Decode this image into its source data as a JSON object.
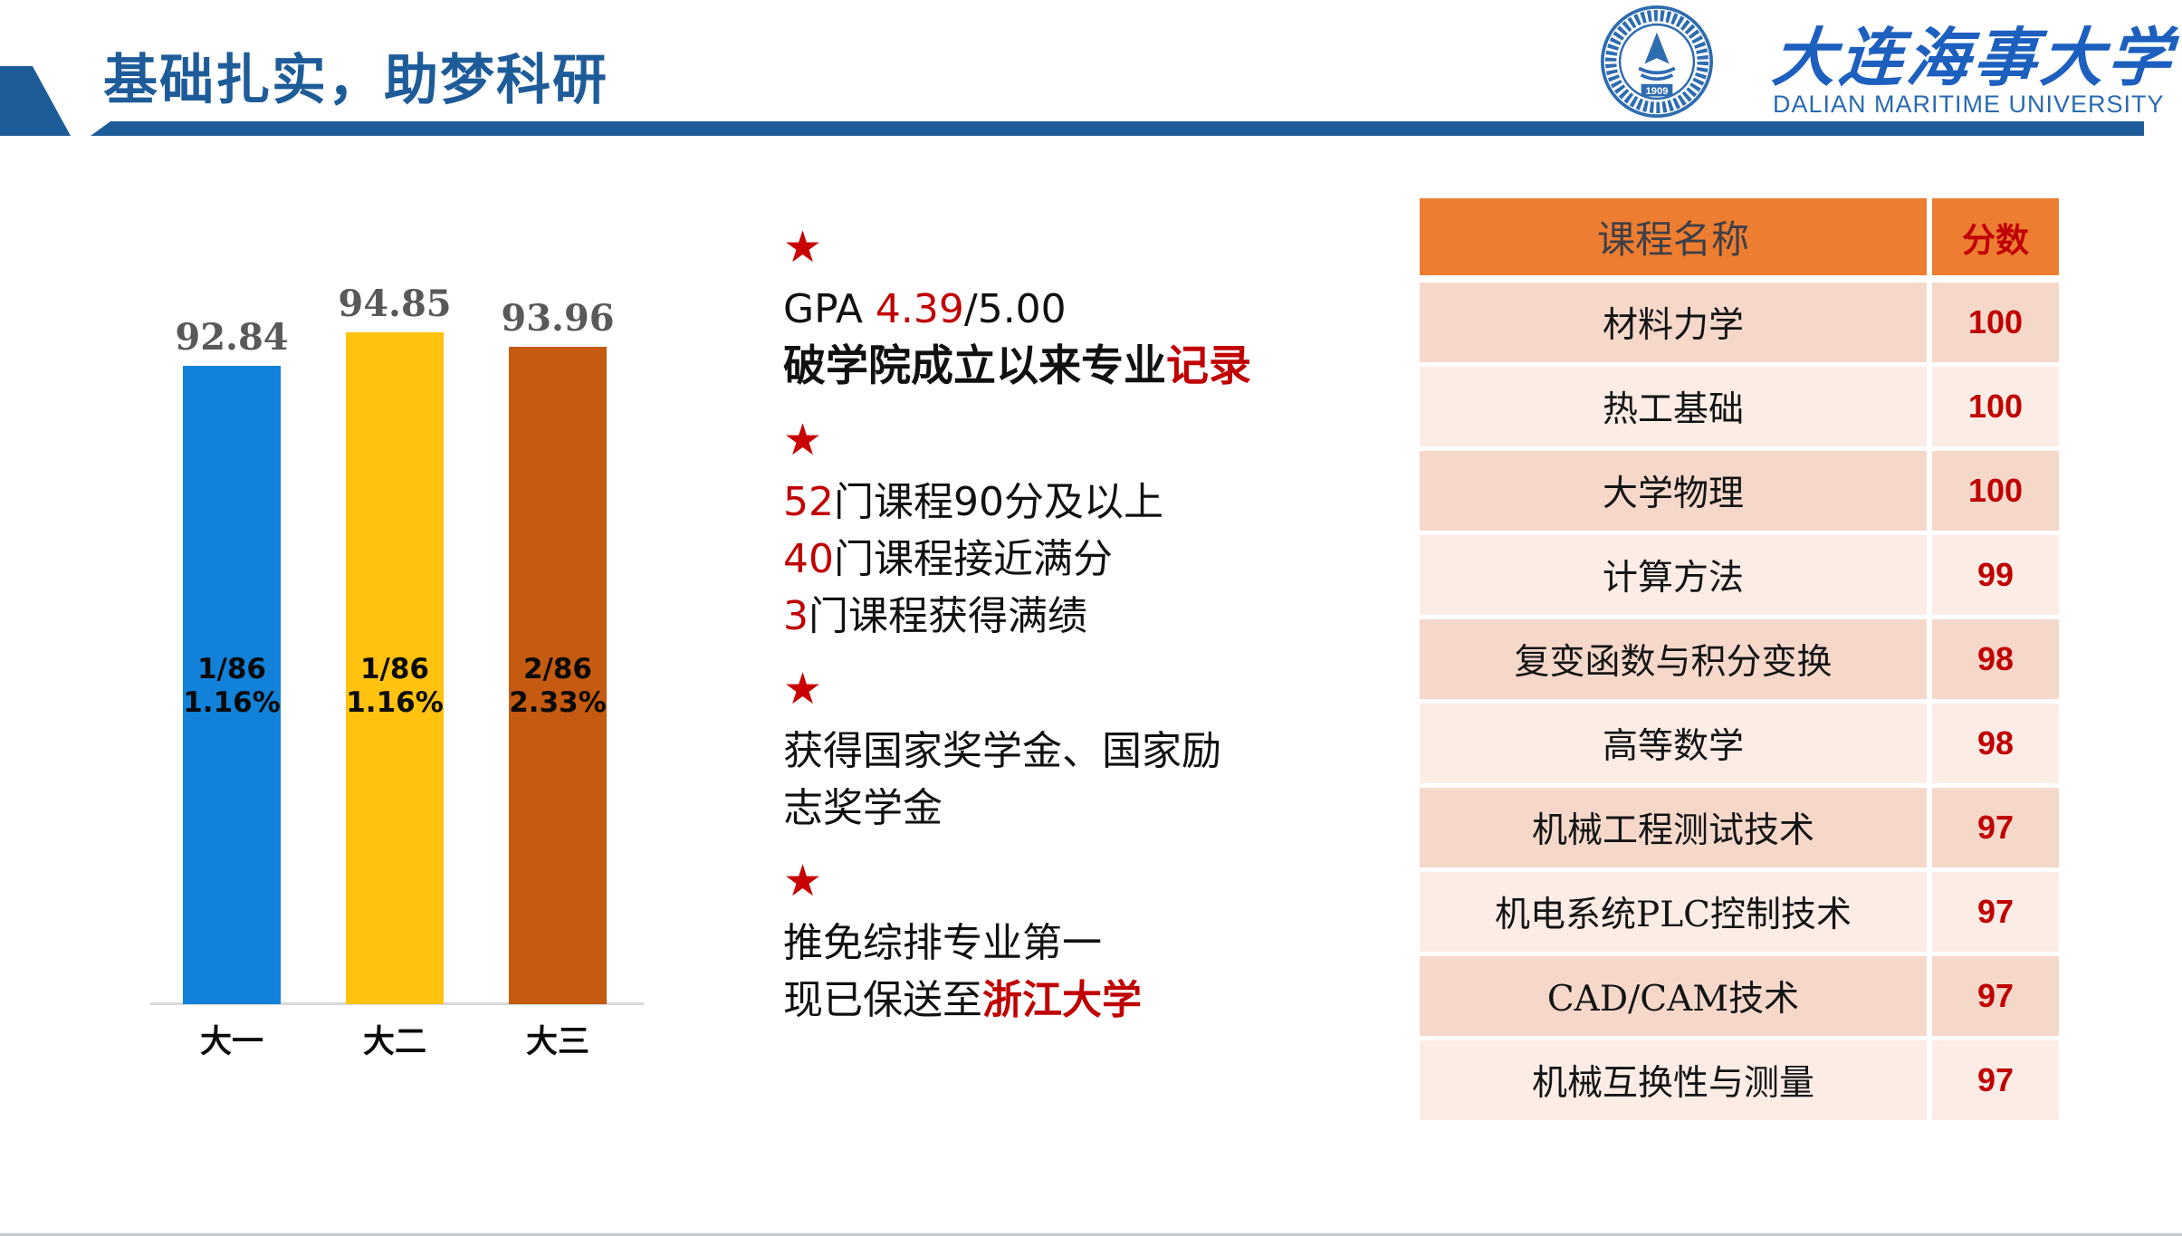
{
  "header": {
    "title": "基础扎实，助梦科研",
    "logo": {
      "cn": "大连海事大学",
      "en": "DALIAN  MARITIME UNIVERSITY",
      "seal_year": "1909"
    }
  },
  "star_glyph": "★",
  "bullets": [
    {
      "lines": [
        {
          "segments": [
            {
              "t": "GPA "
            },
            {
              "t": "4.39",
              "red": true
            },
            {
              "t": "/5.00"
            }
          ]
        },
        {
          "em": true,
          "segments": [
            {
              "t": "破学院成立以来专业",
              "bold": true
            },
            {
              "t": "记录",
              "red": true,
              "bold": true
            }
          ]
        }
      ]
    },
    {
      "lines": [
        {
          "segments": [
            {
              "t": "52",
              "red": true
            },
            {
              "t": "门课程90分及以上"
            }
          ]
        },
        {
          "segments": [
            {
              "t": "40",
              "red": true
            },
            {
              "t": "门课程接近满分"
            }
          ]
        },
        {
          "segments": [
            {
              "t": "3",
              "red": true
            },
            {
              "t": "门课程获得满绩"
            }
          ]
        }
      ]
    },
    {
      "lines": [
        {
          "segments": [
            {
              "t": "获得国家奖学金、国家励"
            }
          ]
        },
        {
          "segments": [
            {
              "t": "志奖学金"
            }
          ]
        }
      ]
    },
    {
      "lines": [
        {
          "segments": [
            {
              "t": "推免综排专业第一"
            }
          ]
        },
        {
          "segments": [
            {
              "t": "现已保送至"
            },
            {
              "t": "浙江大学",
              "red": true,
              "bold": true
            }
          ]
        }
      ]
    }
  ],
  "chart_data": {
    "type": "bar",
    "title": "",
    "categories": [
      "大一",
      "大二",
      "大三"
    ],
    "values": [
      92.84,
      94.85,
      93.96
    ],
    "value_labels": [
      "92.84",
      "94.85",
      "93.96"
    ],
    "bar_annotations": [
      [
        "1/86",
        "1.16%"
      ],
      [
        "1/86",
        "1.16%"
      ],
      [
        "2/86",
        "2.33%"
      ]
    ],
    "bar_colors": [
      "#1181D9",
      "#FFC20E",
      "#C55A11"
    ],
    "value_label_color": "#595959",
    "xlabel": "",
    "ylabel": "",
    "ylim": [
      55,
      96.5
    ],
    "grid": false,
    "legend": false,
    "axis_color": "#D9D9D9"
  },
  "table": {
    "headers": [
      "课程名称",
      "分数"
    ],
    "rows": [
      {
        "name": "材料力学",
        "score": "100"
      },
      {
        "name": "热工基础",
        "score": "100"
      },
      {
        "name": "大学物理",
        "score": "100"
      },
      {
        "name": "计算方法",
        "score": "99"
      },
      {
        "name": "复变函数与积分变换",
        "score": "98"
      },
      {
        "name": "高等数学",
        "score": "98"
      },
      {
        "name": "机械工程测试技术",
        "score": "97"
      },
      {
        "name": "机电系统PLC控制技术",
        "score": "97"
      },
      {
        "name": "CAD/CAM技术",
        "score": "97"
      },
      {
        "name": "机械互换性与测量",
        "score": "97"
      }
    ]
  },
  "colors": {
    "accent_blue": "#1E5C99",
    "logo_blue": "#1C5FBF",
    "dark_red": "#C00000",
    "star_red": "#C80000",
    "table_header_orange": "#ED7D31",
    "row_band_dark": "#F5D8CA",
    "row_band_light": "#FBECE5",
    "bar_blue": "#1181D9",
    "bar_yellow": "#FFC20E",
    "bar_brown": "#C55A11",
    "value_label_gray": "#595959"
  }
}
